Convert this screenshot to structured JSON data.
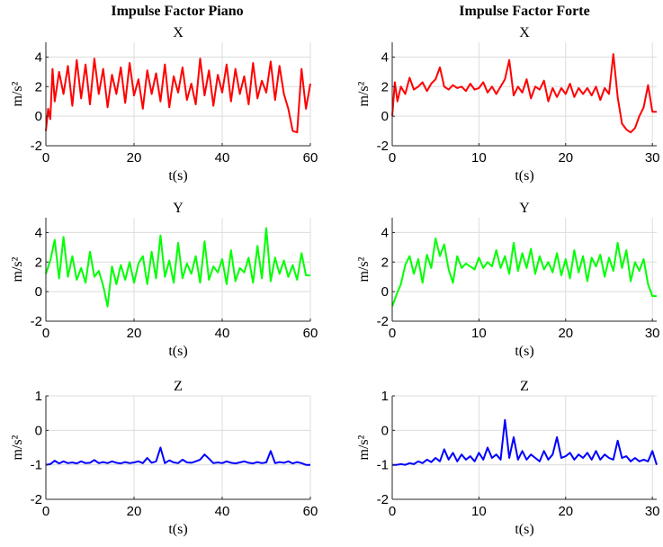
{
  "column_titles": [
    "Impulse Factor Piano",
    "Impulse Factor Forte"
  ],
  "chart_data": [
    {
      "type": "line",
      "title": "X",
      "xlabel": "t(s)",
      "ylabel": "m/s²",
      "xlim": [
        0,
        60
      ],
      "ylim": [
        -2,
        5
      ],
      "xticks": [
        0,
        20,
        40,
        60
      ],
      "yticks": [
        -2,
        0,
        2,
        4
      ],
      "grid": true,
      "color": "#ff0000",
      "x": [
        0,
        0.5,
        1,
        1.5,
        2,
        3,
        4,
        5,
        6,
        7,
        8,
        9,
        10,
        11,
        12,
        13,
        14,
        15,
        16,
        17,
        18,
        19,
        20,
        21,
        22,
        23,
        24,
        25,
        26,
        27,
        28,
        29,
        30,
        31,
        32,
        33,
        34,
        35,
        36,
        37,
        38,
        39,
        40,
        41,
        42,
        43,
        44,
        45,
        46,
        47,
        48,
        49,
        50,
        51,
        52,
        53,
        54,
        55,
        56,
        57,
        58,
        59,
        60
      ],
      "y": [
        -1,
        0.5,
        -0.2,
        3.2,
        1,
        3,
        1.5,
        3.4,
        0.7,
        3.8,
        1.2,
        3.5,
        0.8,
        3.9,
        1.5,
        3.2,
        0.6,
        2.8,
        1.5,
        3.3,
        0.9,
        3.6,
        1.4,
        2.5,
        0.5,
        3.1,
        1.5,
        2.9,
        1,
        3.5,
        0.6,
        2.7,
        1.6,
        3.3,
        1.1,
        2.2,
        0.8,
        3.9,
        1.4,
        3.1,
        0.7,
        2.8,
        1.6,
        3.5,
        1,
        3.2,
        1.5,
        2.7,
        0.8,
        3.6,
        1.2,
        2.4,
        1.6,
        3.7,
        1.1,
        3.4,
        1.5,
        0.5,
        -1,
        -1.1,
        3.2,
        0.5,
        2.2
      ]
    },
    {
      "type": "line",
      "title": "X",
      "xlabel": "t(s)",
      "ylabel": "m/s²",
      "xlim": [
        0,
        30.5
      ],
      "ylim": [
        -2,
        5
      ],
      "xticks": [
        0,
        10,
        20,
        30
      ],
      "yticks": [
        -2,
        0,
        2,
        4
      ],
      "grid": true,
      "color": "#ff0000",
      "x": [
        0,
        0.3,
        0.6,
        1,
        1.5,
        2,
        2.5,
        3,
        3.5,
        4,
        4.5,
        5,
        5.5,
        6,
        6.5,
        7,
        7.5,
        8,
        8.5,
        9,
        9.5,
        10,
        10.5,
        11,
        11.5,
        12,
        12.5,
        13,
        13.5,
        14,
        14.5,
        15,
        15.5,
        16,
        16.5,
        17,
        17.5,
        18,
        18.5,
        19,
        19.5,
        20,
        20.5,
        21,
        21.5,
        22,
        22.5,
        23,
        23.5,
        24,
        24.5,
        25,
        25.5,
        26,
        26.5,
        27,
        27.5,
        28,
        28.5,
        29,
        29.5,
        30,
        30.5
      ],
      "y": [
        0,
        2.3,
        1,
        2,
        1.5,
        2.6,
        1.8,
        2,
        2.3,
        1.7,
        2.2,
        2.5,
        3.3,
        2,
        1.8,
        2.1,
        1.9,
        2,
        1.7,
        2.2,
        1.8,
        1.9,
        2.3,
        1.6,
        2,
        1.5,
        2,
        2.5,
        3.8,
        1.4,
        2,
        1.6,
        2.5,
        1.2,
        2,
        1.8,
        2.4,
        1,
        1.9,
        1.3,
        1.9,
        1.5,
        2.2,
        1.3,
        1.9,
        1.5,
        1.9,
        1.4,
        2,
        1.1,
        1.9,
        1.5,
        4.2,
        1.3,
        -0.5,
        -0.9,
        -1.1,
        -0.8,
        0,
        0.6,
        2.1,
        0.3,
        0.3
      ]
    },
    {
      "type": "line",
      "title": "Y",
      "xlabel": "t(s)",
      "ylabel": "m/s²",
      "xlim": [
        0,
        60
      ],
      "ylim": [
        -2,
        5
      ],
      "xticks": [
        0,
        20,
        40,
        60
      ],
      "yticks": [
        -2,
        0,
        2,
        4
      ],
      "grid": true,
      "color": "#00ff00",
      "x": [
        0,
        1,
        2,
        3,
        4,
        5,
        6,
        7,
        8,
        9,
        10,
        11,
        12,
        13,
        14,
        15,
        16,
        17,
        18,
        19,
        20,
        21,
        22,
        23,
        24,
        25,
        26,
        27,
        28,
        29,
        30,
        31,
        32,
        33,
        34,
        35,
        36,
        37,
        38,
        39,
        40,
        41,
        42,
        43,
        44,
        45,
        46,
        47,
        48,
        49,
        50,
        51,
        52,
        53,
        54,
        55,
        56,
        57,
        58,
        59,
        60
      ],
      "y": [
        1.2,
        2.1,
        3.5,
        0.9,
        3.7,
        1,
        2.4,
        0.8,
        1.6,
        0.6,
        2.7,
        1,
        1.4,
        0.4,
        -1,
        1.7,
        0.5,
        1.8,
        0.8,
        2,
        0.6,
        1.9,
        2.4,
        0.5,
        2.7,
        0.9,
        3.8,
        1,
        2.1,
        0.6,
        3.3,
        0.9,
        1.9,
        1.2,
        2.4,
        0.6,
        3.4,
        0.8,
        1.7,
        1.3,
        2.2,
        0.5,
        2.8,
        0.7,
        1.6,
        1.3,
        2.3,
        0.6,
        3.1,
        0.9,
        4.3,
        0.7,
        2.3,
        1.2,
        2.1,
        1,
        1.8,
        0.8,
        2.6,
        1.1,
        1.1
      ]
    },
    {
      "type": "line",
      "title": "Y",
      "xlabel": "t(s)",
      "ylabel": "m/s²",
      "xlim": [
        0,
        30.5
      ],
      "ylim": [
        -2,
        5
      ],
      "xticks": [
        0,
        10,
        20,
        30
      ],
      "yticks": [
        -2,
        0,
        2,
        4
      ],
      "grid": true,
      "color": "#00ff00",
      "x": [
        0,
        0.5,
        1,
        1.5,
        2,
        2.5,
        3,
        3.5,
        4,
        4.5,
        5,
        5.5,
        6,
        6.5,
        7,
        7.5,
        8,
        8.5,
        9,
        9.5,
        10,
        10.5,
        11,
        11.5,
        12,
        12.5,
        13,
        13.5,
        14,
        14.5,
        15,
        15.5,
        16,
        16.5,
        17,
        17.5,
        18,
        18.5,
        19,
        19.5,
        20,
        20.5,
        21,
        21.5,
        22,
        22.5,
        23,
        23.5,
        24,
        24.5,
        25,
        25.5,
        26,
        26.5,
        27,
        27.5,
        28,
        28.5,
        29,
        29.5,
        30,
        30.5
      ],
      "y": [
        -1,
        -0.2,
        0.5,
        1.8,
        2.4,
        1.2,
        2.2,
        0.6,
        2.5,
        1.6,
        3.6,
        2.4,
        3.2,
        1.5,
        0.6,
        2.4,
        1.6,
        1.9,
        1.7,
        1.5,
        2.3,
        1.6,
        2,
        1.7,
        2.8,
        1.6,
        2.4,
        1.2,
        3.3,
        1.4,
        2.6,
        1.6,
        2.9,
        1.2,
        2.4,
        1.5,
        2,
        1.3,
        2.6,
        1.1,
        2.2,
        0.9,
        2.8,
        1.3,
        2.4,
        0.7,
        2.3,
        1.7,
        2.5,
        1,
        2.3,
        1.4,
        3.3,
        1.6,
        2.8,
        0.7,
        2,
        1.4,
        2.2,
        0.5,
        -0.3,
        -0.3
      ]
    },
    {
      "type": "line",
      "title": "Z",
      "xlabel": "t(s)",
      "ylabel": "m/s²",
      "xlim": [
        0,
        60
      ],
      "ylim": [
        -2,
        1
      ],
      "xticks": [
        0,
        20,
        40,
        60
      ],
      "yticks": [
        -2,
        -1,
        0,
        1
      ],
      "grid": true,
      "color": "#0000ff",
      "x": [
        0,
        1,
        2,
        3,
        4,
        5,
        6,
        7,
        8,
        9,
        10,
        11,
        12,
        13,
        14,
        15,
        16,
        17,
        18,
        19,
        20,
        21,
        22,
        23,
        24,
        25,
        26,
        27,
        28,
        29,
        30,
        31,
        32,
        33,
        34,
        35,
        36,
        37,
        38,
        39,
        40,
        41,
        42,
        43,
        44,
        45,
        46,
        47,
        48,
        49,
        50,
        51,
        52,
        53,
        54,
        55,
        56,
        57,
        58,
        59,
        60
      ],
      "y": [
        -1,
        -0.98,
        -0.88,
        -0.96,
        -0.9,
        -0.95,
        -0.93,
        -0.96,
        -0.9,
        -0.95,
        -0.94,
        -0.86,
        -0.95,
        -0.92,
        -0.95,
        -0.9,
        -0.94,
        -0.96,
        -0.92,
        -0.95,
        -0.93,
        -0.9,
        -0.95,
        -0.8,
        -0.94,
        -0.9,
        -0.5,
        -0.95,
        -0.87,
        -0.93,
        -0.95,
        -0.85,
        -0.93,
        -0.94,
        -0.9,
        -0.85,
        -0.7,
        -0.82,
        -0.95,
        -0.93,
        -0.95,
        -0.9,
        -0.94,
        -0.96,
        -0.93,
        -0.9,
        -0.94,
        -0.96,
        -0.92,
        -0.95,
        -0.93,
        -0.6,
        -0.95,
        -0.92,
        -0.94,
        -0.9,
        -0.96,
        -0.92,
        -0.95,
        -1,
        -1
      ]
    },
    {
      "type": "line",
      "title": "Z",
      "xlabel": "t(s)",
      "ylabel": "m/s²",
      "xlim": [
        0,
        30.5
      ],
      "ylim": [
        -2,
        1
      ],
      "xticks": [
        0,
        10,
        20,
        30
      ],
      "yticks": [
        -2,
        -1,
        0,
        1
      ],
      "grid": true,
      "color": "#0000ff",
      "x": [
        0,
        0.5,
        1,
        1.5,
        2,
        2.5,
        3,
        3.5,
        4,
        4.5,
        5,
        5.5,
        6,
        6.5,
        7,
        7.5,
        8,
        8.5,
        9,
        9.5,
        10,
        10.5,
        11,
        11.5,
        12,
        12.5,
        13,
        13.5,
        14,
        14.5,
        15,
        15.5,
        16,
        16.5,
        17,
        17.5,
        18,
        18.5,
        19,
        19.5,
        20,
        20.5,
        21,
        21.5,
        22,
        22.5,
        23,
        23.5,
        24,
        24.5,
        25,
        25.5,
        26,
        26.5,
        27,
        27.5,
        28,
        28.5,
        29,
        29.5,
        30,
        30.5
      ],
      "y": [
        -1,
        -1,
        -0.98,
        -1,
        -0.95,
        -0.98,
        -0.9,
        -0.95,
        -0.85,
        -0.92,
        -0.8,
        -0.9,
        -0.55,
        -0.85,
        -0.65,
        -0.9,
        -0.7,
        -0.85,
        -0.75,
        -0.9,
        -0.65,
        -0.85,
        -0.5,
        -0.8,
        -0.7,
        -0.85,
        0.3,
        -0.8,
        -0.2,
        -0.85,
        -0.6,
        -0.85,
        -0.7,
        -0.8,
        -0.9,
        -0.6,
        -0.85,
        -0.7,
        -0.2,
        -0.8,
        -0.75,
        -0.65,
        -0.85,
        -0.7,
        -0.8,
        -0.65,
        -0.85,
        -0.6,
        -0.85,
        -0.7,
        -0.8,
        -0.85,
        -0.3,
        -0.8,
        -0.75,
        -0.9,
        -0.8,
        -0.9,
        -0.85,
        -0.9,
        -0.6,
        -1
      ]
    }
  ]
}
